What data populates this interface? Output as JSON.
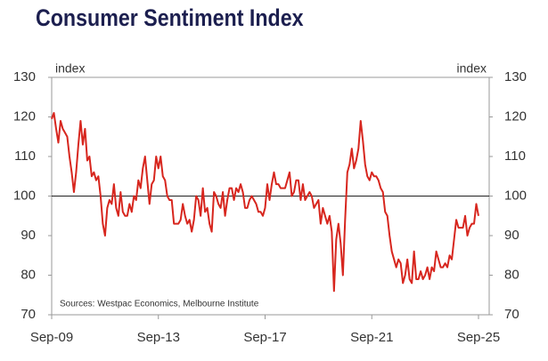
{
  "chart_data": {
    "type": "line",
    "title": "Consumer Sentiment Index",
    "y_label": "index",
    "y2_label": "index",
    "source": "Sources: Westpac Economics, Melbourne Institute",
    "categories": [
      "Sep-09",
      null,
      null,
      null,
      null,
      null,
      null,
      null,
      null,
      null,
      null,
      null,
      null,
      null,
      null,
      null,
      null,
      null,
      null,
      null,
      null,
      null,
      null,
      null,
      null,
      null,
      null,
      null,
      null,
      null,
      null,
      null,
      null,
      null,
      null,
      null,
      null,
      null,
      null,
      null,
      null,
      null,
      null,
      null,
      null,
      null,
      null,
      null,
      "Sep-13",
      null,
      null,
      null,
      null,
      null,
      null,
      null,
      null,
      null,
      null,
      null,
      null,
      null,
      null,
      null,
      null,
      null,
      null,
      null,
      null,
      null,
      null,
      null,
      null,
      null,
      null,
      null,
      null,
      null,
      null,
      null,
      null,
      null,
      null,
      null,
      null,
      null,
      null,
      null,
      null,
      null,
      null,
      null,
      null,
      null,
      null,
      null,
      "Sep-17",
      null,
      null,
      null,
      null,
      null,
      null,
      null,
      null,
      null,
      null,
      null,
      null,
      null,
      null,
      null,
      null,
      null,
      null,
      null,
      null,
      null,
      null,
      null,
      null,
      null,
      null,
      null,
      null,
      null,
      null,
      null,
      null,
      null,
      null,
      null,
      null,
      null,
      null,
      null,
      null,
      null,
      null,
      null,
      null,
      null,
      null,
      null,
      "Sep-21",
      null,
      null,
      null,
      null,
      null,
      null,
      null,
      null,
      null,
      null,
      null,
      null,
      null,
      null,
      null,
      null,
      null,
      null,
      null,
      null,
      null,
      null,
      null,
      null,
      null,
      null,
      null,
      null,
      null,
      null,
      null,
      null,
      null,
      null,
      null,
      null,
      null,
      null,
      null,
      null,
      null,
      null,
      null,
      null,
      null,
      null,
      null,
      "Sep-25"
    ],
    "series": [
      {
        "name": "Consumer Sentiment Index",
        "color": "#d7261e",
        "values": [
          119.5,
          121,
          117,
          113.5,
          119,
          117,
          116,
          115,
          110,
          106,
          101,
          106,
          113,
          119,
          113,
          117,
          109,
          110,
          105,
          106,
          104,
          105,
          100,
          93,
          90,
          97,
          99,
          98,
          103,
          97,
          95,
          101,
          96,
          95,
          95,
          98,
          96,
          100,
          99,
          104,
          102,
          107,
          110,
          104,
          98,
          103,
          104,
          110,
          107,
          110,
          105,
          104,
          100,
          99,
          99,
          93,
          93,
          93,
          94,
          98,
          95,
          93,
          94,
          91,
          94,
          100,
          99,
          95,
          102,
          96,
          97,
          93,
          91,
          101,
          100,
          98,
          97,
          101,
          95,
          99,
          102,
          102,
          99,
          102,
          101,
          103,
          101,
          97,
          97,
          99,
          100,
          99,
          98,
          96,
          96,
          95,
          97,
          103,
          99,
          103,
          106,
          103,
          103,
          102,
          102,
          102,
          104,
          106,
          100,
          101,
          104,
          104,
          99,
          103,
          99,
          100,
          101,
          100,
          97,
          98,
          99,
          93,
          97,
          95,
          93,
          95,
          91,
          76,
          89,
          93,
          88,
          80,
          94,
          106,
          108,
          112,
          107,
          109,
          112,
          119,
          114,
          108,
          105,
          104,
          106,
          105,
          105,
          104,
          102,
          101,
          96,
          95,
          90,
          86,
          84,
          82,
          84,
          83,
          78,
          80,
          84,
          79,
          78,
          86,
          79,
          79,
          81,
          79,
          80,
          82,
          79,
          82,
          81,
          86,
          84,
          82,
          82,
          83,
          82,
          85,
          84,
          89,
          94,
          92,
          92,
          92,
          95,
          90,
          92,
          93,
          93,
          98,
          95
        ]
      }
    ],
    "ylim": [
      70,
      130
    ],
    "yticks": [
      70,
      80,
      90,
      100,
      110,
      120,
      130
    ],
    "y2lim": [
      70,
      130
    ],
    "y2ticks": [
      70,
      80,
      90,
      100,
      110,
      120,
      130
    ],
    "reference_line": 100
  }
}
